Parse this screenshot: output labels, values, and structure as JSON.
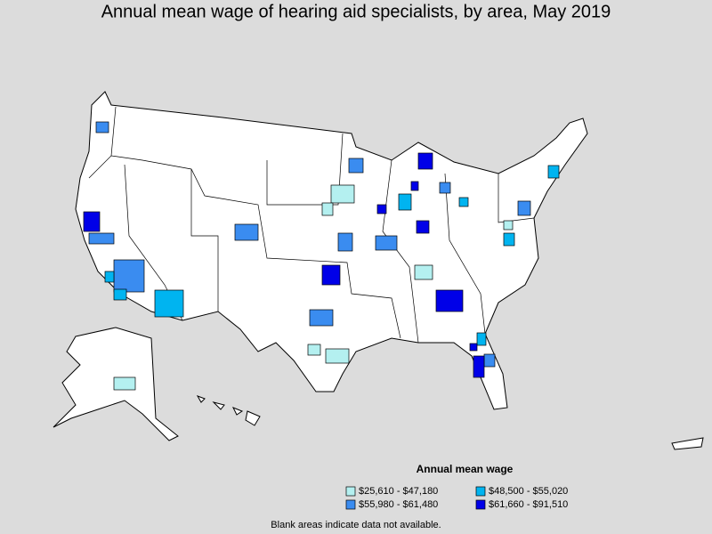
{
  "title": "Annual mean wage of hearing aid specialists, by area, May 2019",
  "legend": {
    "title": "Annual mean wage",
    "items": [
      {
        "label": "$25,610 - $47,180",
        "color": "#b4f0f0"
      },
      {
        "label": "$48,500 - $55,020",
        "color": "#00b4f0"
      },
      {
        "label": "$55,980 - $61,480",
        "color": "#3a8cf0"
      },
      {
        "label": "$61,660 - $91,510",
        "color": "#0000e8"
      }
    ]
  },
  "note": "Blank areas indicate data not available."
}
